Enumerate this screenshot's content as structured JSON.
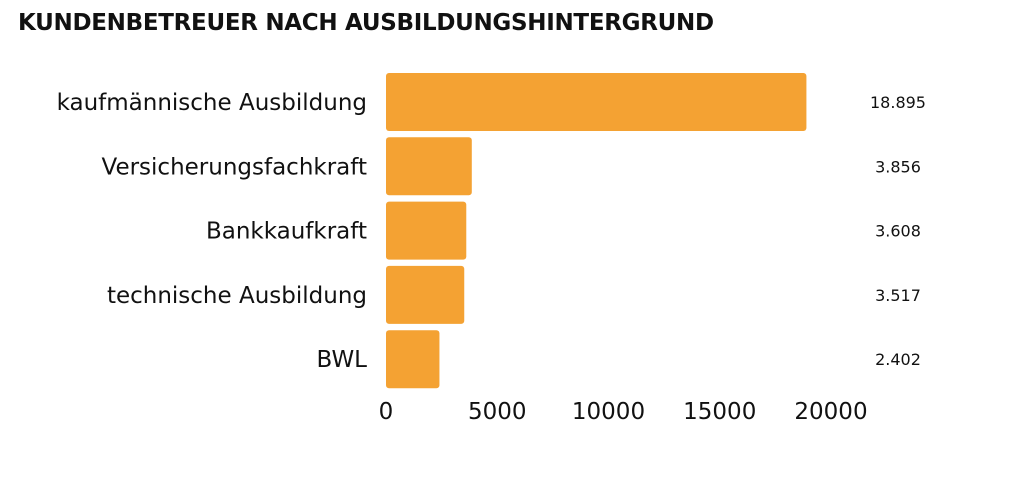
{
  "chart_data": {
    "type": "bar",
    "orientation": "horizontal",
    "title": "KUNDENBETREUER NACH AUSBILDUNGSHINTERGRUND",
    "categories": [
      "kaufmännische Ausbildung",
      "Versicherungsfachkraft",
      "Bankkaufkraft",
      "technische Ausbildung",
      "BWL"
    ],
    "values": [
      18895,
      3856,
      3608,
      3517,
      2402
    ],
    "value_labels": [
      "18.895",
      "3.856",
      "3.608",
      "3.517",
      "2.402"
    ],
    "xlabel": "",
    "ylabel": "",
    "xlim": [
      0,
      20000
    ],
    "xticks": [
      0,
      5000,
      10000,
      15000,
      20000
    ],
    "xtick_labels": [
      "0",
      "5000",
      "10000",
      "15000",
      "20000"
    ],
    "grid": false,
    "color": "#F4A233"
  }
}
